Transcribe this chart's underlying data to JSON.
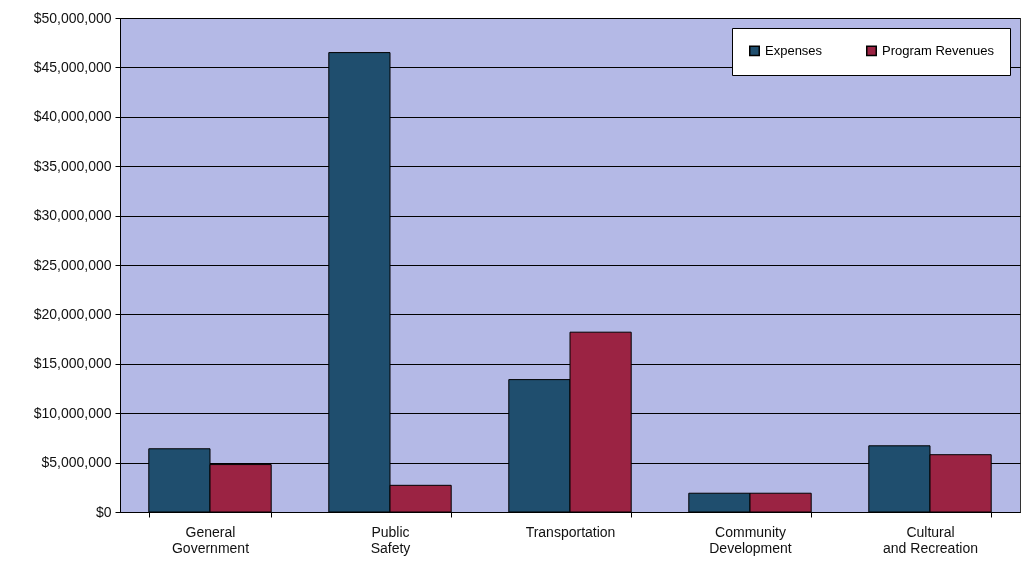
{
  "chart_data": {
    "type": "bar",
    "categories": [
      "General Government",
      "Public Safety",
      "Transportation",
      "Community Development",
      "Cultural and Recreation"
    ],
    "series": [
      {
        "name": "Expenses",
        "color": "#1f4e6e",
        "values": [
          6400000,
          46500000,
          13400000,
          1900000,
          6700000
        ]
      },
      {
        "name": "Program Revenues",
        "color": "#9b2343",
        "values": [
          4800000,
          2700000,
          18200000,
          1900000,
          5800000
        ]
      }
    ],
    "ylim": [
      0,
      50000000
    ],
    "yticks": [
      {
        "value": 0,
        "label": "$0"
      },
      {
        "value": 5000000,
        "label": "$5,000,000"
      },
      {
        "value": 10000000,
        "label": "$10,000,000"
      },
      {
        "value": 15000000,
        "label": "$15,000,000"
      },
      {
        "value": 20000000,
        "label": "$20,000,000"
      },
      {
        "value": 25000000,
        "label": "$25,000,000"
      },
      {
        "value": 30000000,
        "label": "$30,000,000"
      },
      {
        "value": 35000000,
        "label": "$35,000,000"
      },
      {
        "value": 40000000,
        "label": "$40,000,000"
      },
      {
        "value": 45000000,
        "label": "$45,000,000"
      },
      {
        "value": 50000000,
        "label": "$50,000,000"
      }
    ],
    "grid": "y",
    "legend": "top right"
  }
}
